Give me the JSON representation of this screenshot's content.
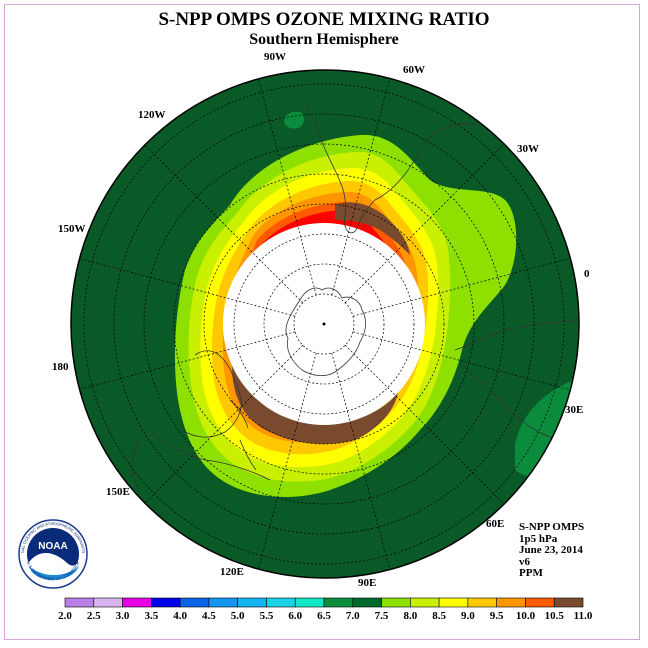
{
  "title": "S-NPP OMPS OZONE MIXING RATIO",
  "subtitle": "Southern Hemisphere",
  "meridian_labels": [
    "90W",
    "60W",
    "30W",
    "0",
    "30E",
    "60E",
    "90E",
    "120E",
    "150E",
    "180",
    "150W",
    "120W"
  ],
  "info": {
    "instrument": "S-NPP OMPS",
    "level": "1p5 hPa",
    "date": "June 23, 2014",
    "version": "v6",
    "units": "PPM"
  },
  "logo": {
    "text": "NOAA",
    "ring_text": "NATIONAL OCEANIC AND ATMOSPHERIC ADMINISTRATION",
    "bottom_text": "U.S. DEPARTMENT OF COMMERCE"
  },
  "colorbar": {
    "labels": [
      "2.0",
      "2.5",
      "3.0",
      "3.5",
      "4.0",
      "4.5",
      "5.0",
      "5.5",
      "6.0",
      "6.5",
      "7.0",
      "7.5",
      "8.0",
      "8.5",
      "9.0",
      "9.5",
      "10.0",
      "10.5",
      "11.0"
    ],
    "colors": [
      "#b87fe6",
      "#d9b3f0",
      "#e600e6",
      "#0000e6",
      "#0a64e6",
      "#1496f0",
      "#14b4f0",
      "#1ed2e6",
      "#14e6c8",
      "#0a8c3c",
      "#006a2a",
      "#8ee000",
      "#c8f000",
      "#ffff00",
      "#ffc800",
      "#ff9600",
      "#ff5a00",
      "#ff0000",
      "#7a4a2e"
    ]
  },
  "map": {
    "background_color": "#0a5a28",
    "polar_night_color": "#ffffff",
    "band_colors": [
      "#8ee000",
      "#c8f000",
      "#ffff00",
      "#ffc800",
      "#ff9600",
      "#ff5a00",
      "#ff0000",
      "#7a4a2e"
    ]
  }
}
